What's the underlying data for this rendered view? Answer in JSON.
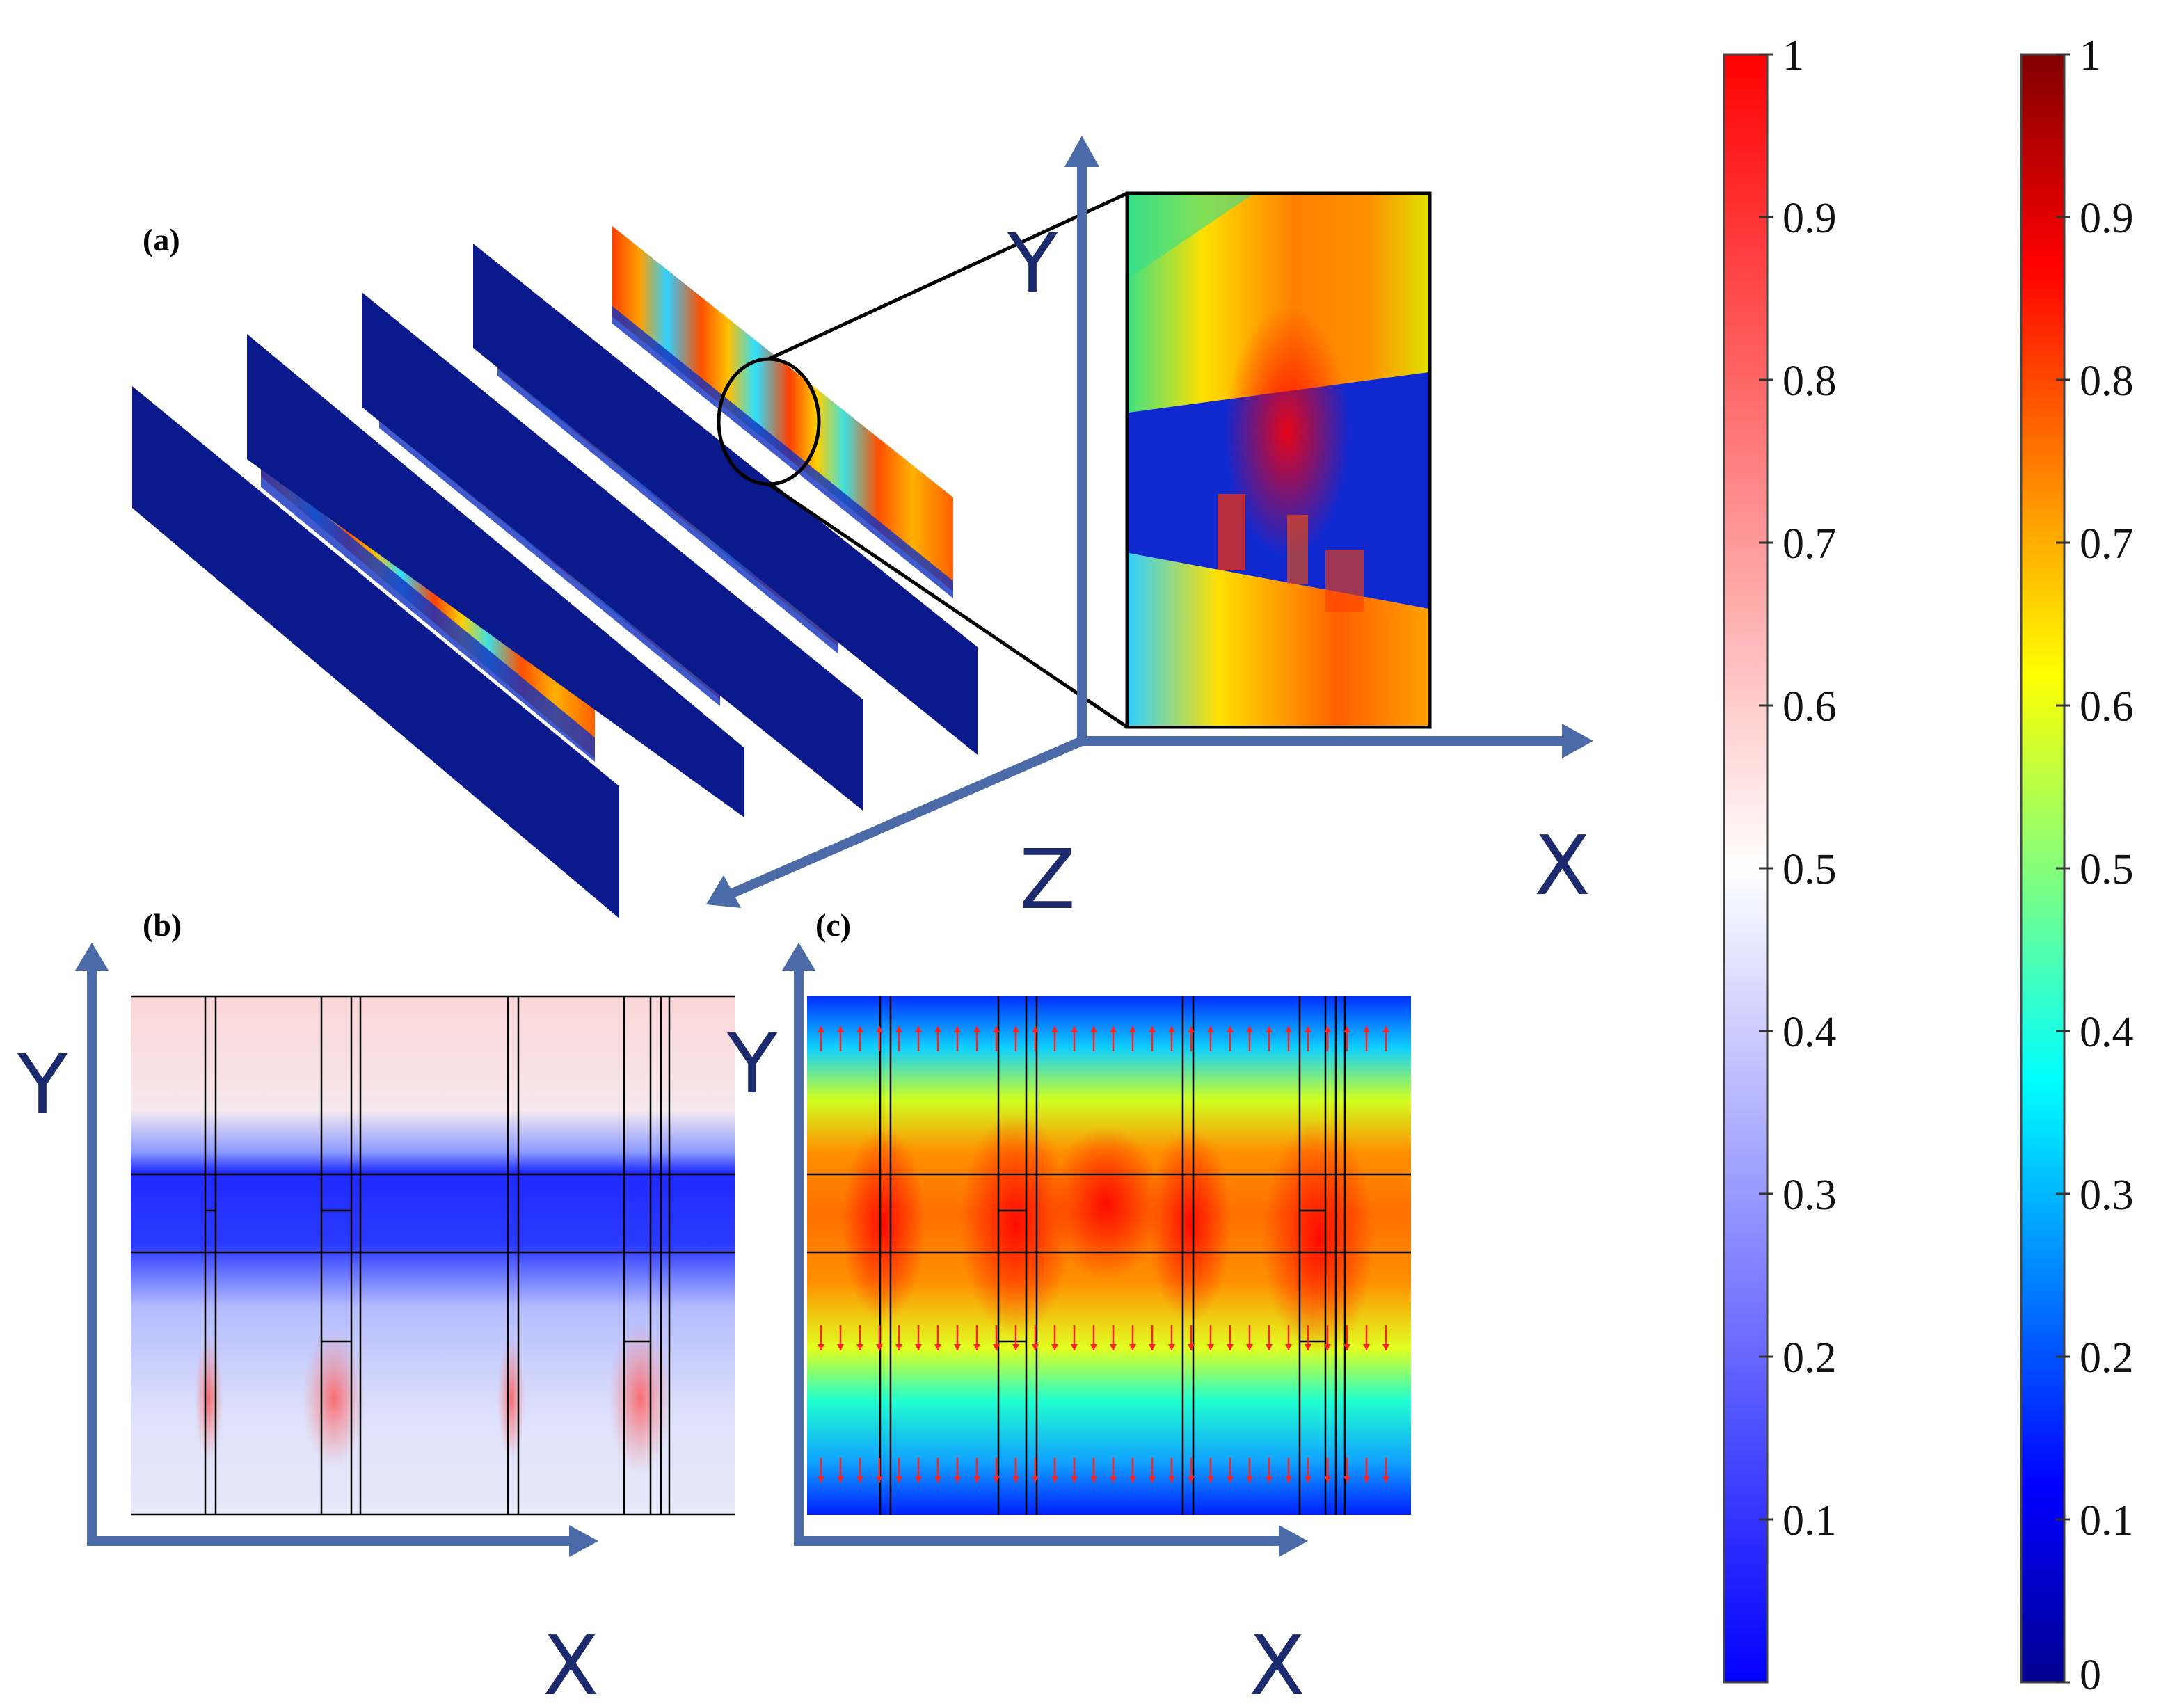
{
  "panels": {
    "a": {
      "label": "(a)",
      "axes": {
        "y": "Y",
        "z": "Z",
        "x": "X"
      }
    },
    "b": {
      "label": "(b)",
      "axes": {
        "y": "Y",
        "x": "X"
      }
    },
    "c": {
      "label": "(c)",
      "axes": {
        "y": "Y",
        "x": "X"
      }
    }
  },
  "colorbars": [
    {
      "name": "blue-white-red",
      "colors": [
        "#0000ff",
        "#ffffff",
        "#ff0000"
      ],
      "ticks": [
        "0.1",
        "0.2",
        "0.3",
        "0.4",
        "0.5",
        "0.6",
        "0.7",
        "0.8",
        "0.9",
        "1"
      ],
      "tick_values": [
        0.1,
        0.2,
        0.3,
        0.4,
        0.5,
        0.6,
        0.7,
        0.8,
        0.9,
        1.0
      ],
      "range": [
        0,
        1
      ]
    },
    {
      "name": "jet",
      "colors": [
        "#00008f",
        "#0000ff",
        "#00ffff",
        "#ffff00",
        "#ff0000",
        "#800000"
      ],
      "ticks": [
        "0",
        "0.1",
        "0.2",
        "0.3",
        "0.4",
        "0.5",
        "0.6",
        "0.7",
        "0.8",
        "0.9",
        "1"
      ],
      "tick_values": [
        0,
        0.1,
        0.2,
        0.3,
        0.4,
        0.5,
        0.6,
        0.7,
        0.8,
        0.9,
        1.0
      ],
      "range": [
        0,
        1
      ]
    }
  ],
  "colors": {
    "axis_arrow": "#4a6aa8",
    "axis_label": "#1c2a6e",
    "slab_dark": "#0a1a8c"
  }
}
